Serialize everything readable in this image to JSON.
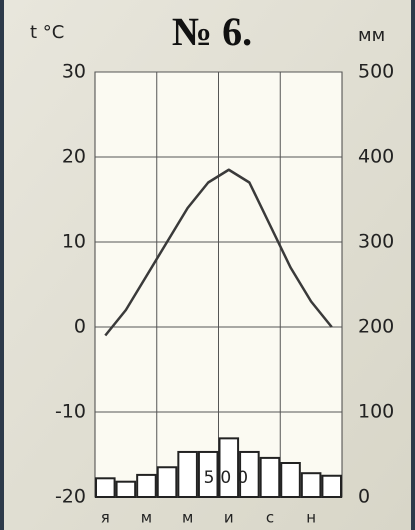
{
  "chart_data": {
    "type": "combo",
    "title": "№ 6.",
    "y_label": "t °C",
    "y2_label": "мм",
    "categories": [
      "я",
      null,
      "м",
      null,
      "м",
      null,
      "и",
      null,
      "с",
      null,
      "н",
      null
    ],
    "series": [
      {
        "type": "bar",
        "axis": "y2",
        "color": "#ffffff",
        "values": [
          22,
          18,
          26,
          35,
          53,
          53,
          69,
          53,
          46,
          40,
          28,
          25
        ]
      },
      {
        "type": "line",
        "axis": "y",
        "color": "#3a3a3a",
        "values": [
          -1,
          2,
          6,
          10,
          14,
          17,
          18.5,
          17,
          12,
          7,
          3,
          0
        ]
      }
    ],
    "annotation": "500",
    "ylim": [
      -20,
      30
    ],
    "yticks": [
      -20,
      -10,
      0,
      10,
      20,
      30
    ],
    "y2lim": [
      0,
      500
    ],
    "y2ticks": [
      0,
      100,
      200,
      300,
      400,
      500
    ],
    "grid": true
  }
}
